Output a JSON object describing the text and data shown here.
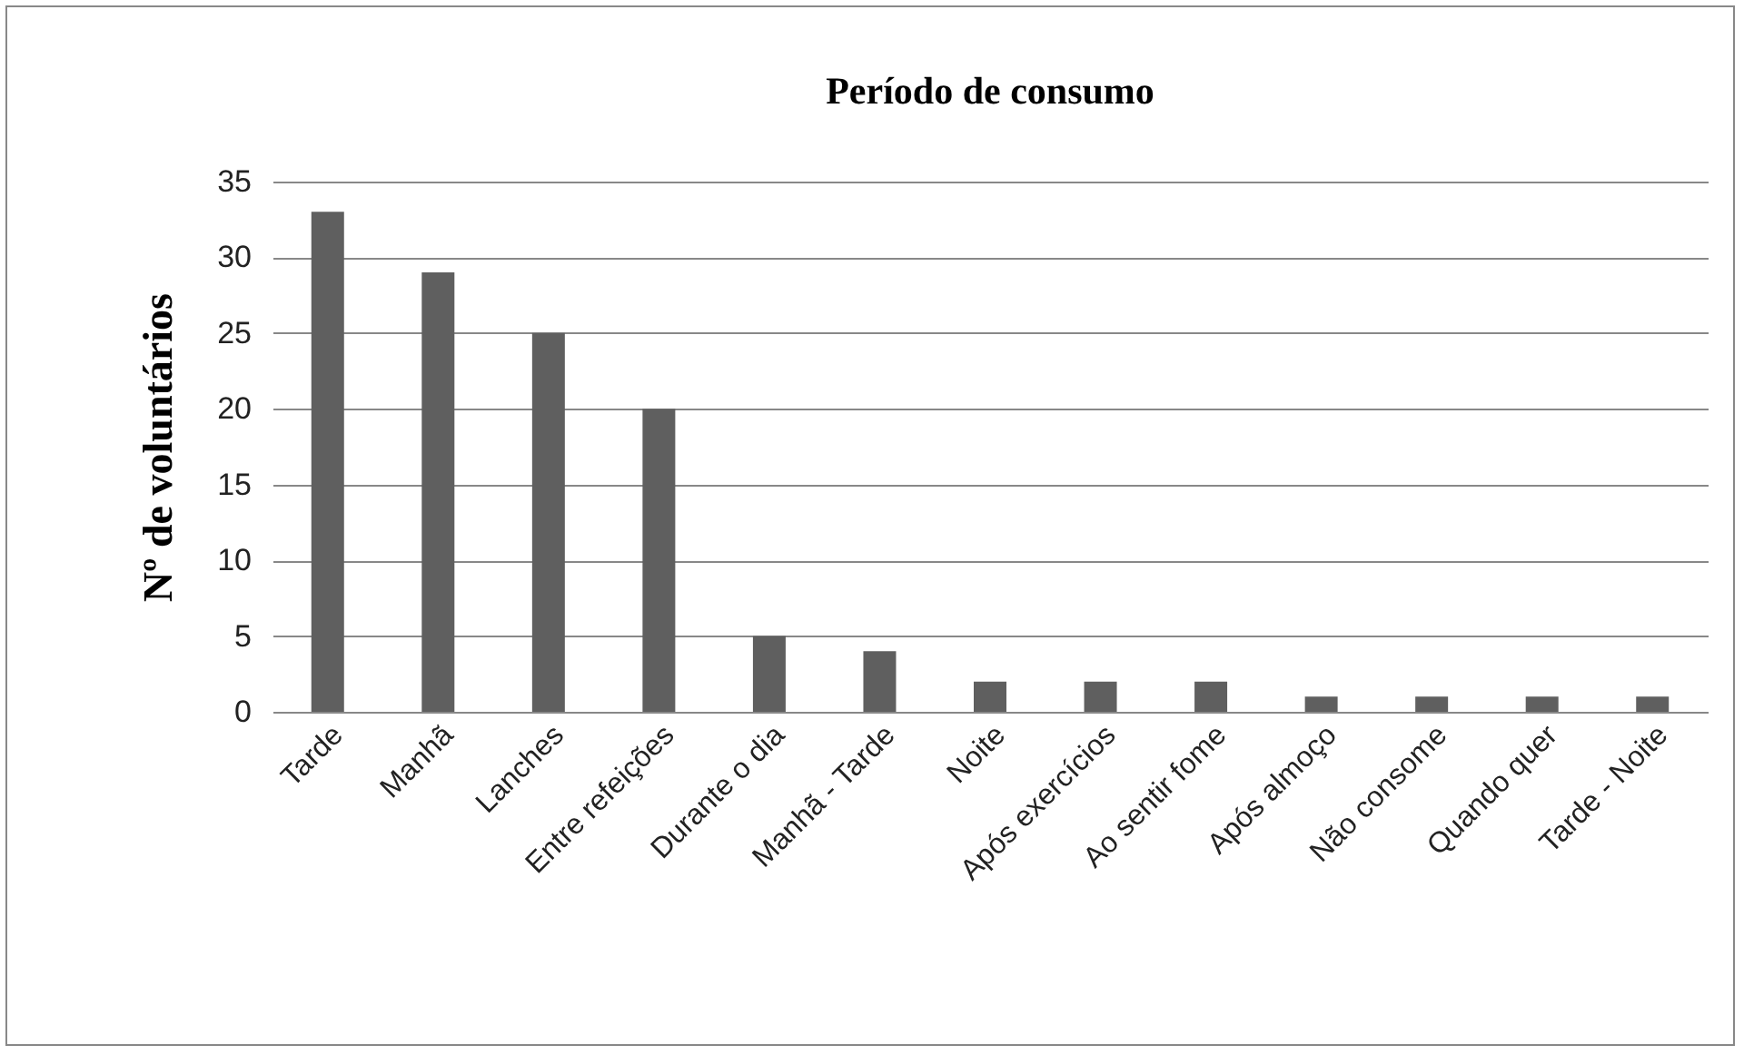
{
  "chart_data": {
    "type": "bar",
    "title": "Período de consumo",
    "ylabel": "Nº de voluntários",
    "categories": [
      "Tarde",
      "Manhã",
      "Lanches",
      "Entre refeições",
      "Durante o dia",
      "Manhã - Tarde",
      "Noite",
      "Após exercícios",
      "Ao sentir fome",
      "Após almoço",
      "Não consome",
      "Quando quer",
      "Tarde - Noite"
    ],
    "values": [
      33,
      29,
      25,
      20,
      5,
      4,
      2,
      2,
      2,
      1,
      1,
      1,
      1
    ],
    "color": "#5f5f5f",
    "ylim": [
      0,
      35
    ],
    "yticks": [
      0,
      5,
      10,
      15,
      20,
      25,
      30,
      35
    ],
    "grid": "y"
  }
}
